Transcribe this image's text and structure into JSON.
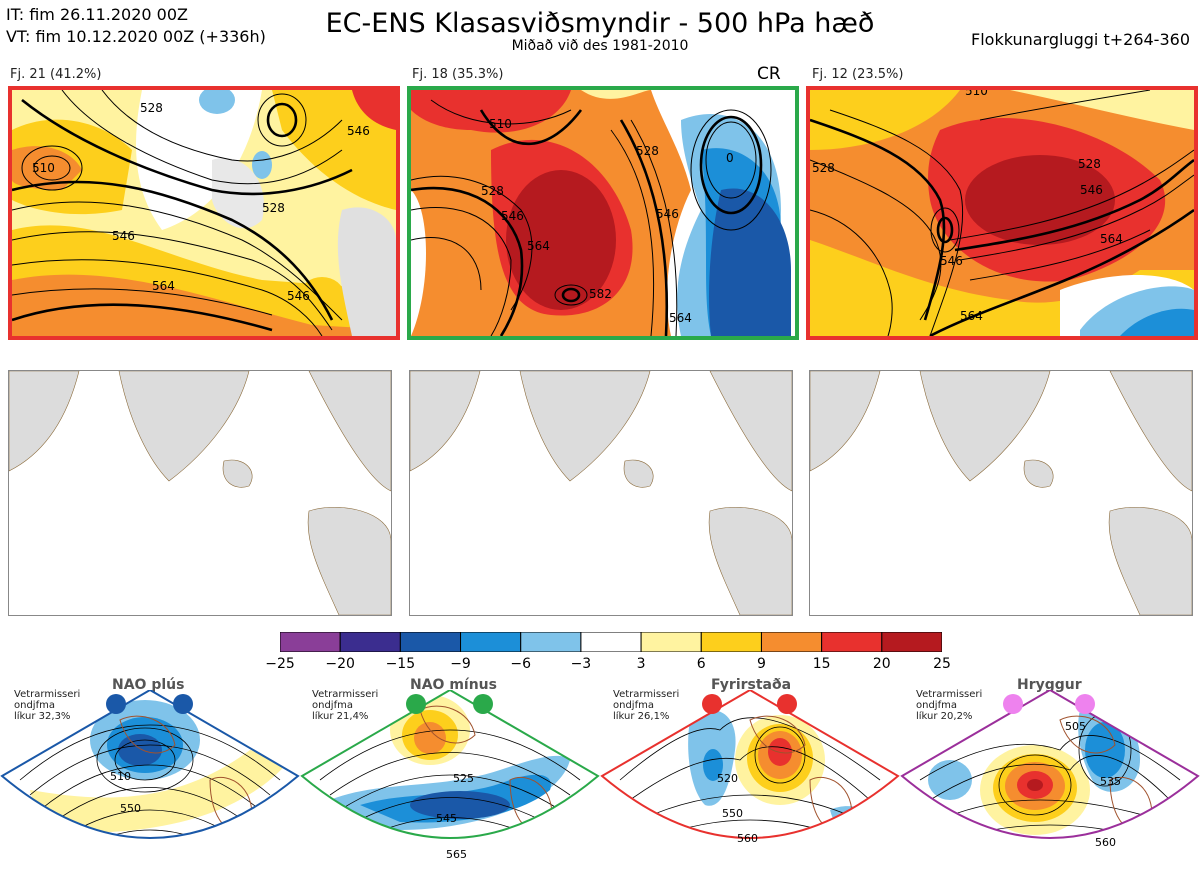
{
  "header": {
    "it_line": "IT: fim 26.11.2020 00Z",
    "vt_line": "VT: fim 10.12.2020 00Z  (+336h)",
    "title": "EC-ENS Klasasviðsmyndir - 500 hPa hæð",
    "subtitle": "Miðað við des 1981-2010",
    "window": "Flokkunargluggi t+264-360"
  },
  "clusters": [
    {
      "label": "Fj. 21 (41.2%)",
      "frame_color": "#e8312e",
      "tag": "",
      "contour_labels": [
        "510",
        "528",
        "546",
        "564",
        "528",
        "546",
        "546"
      ]
    },
    {
      "label": "Fj. 18 (35.3%)",
      "frame_color": "#2aa94a",
      "tag": "CR",
      "contour_labels": [
        "510",
        "528",
        "546",
        "564",
        "582",
        "528",
        "546",
        "564",
        "0"
      ]
    },
    {
      "label": "Fj. 12 (23.5%)",
      "frame_color": "#e8312e",
      "tag": "",
      "contour_labels": [
        "510",
        "528",
        "546",
        "564",
        "528",
        "546",
        "564"
      ]
    }
  ],
  "colorbar": {
    "ticks": [
      "−25",
      "−20",
      "−15",
      "−9",
      "−6",
      "−3",
      "3",
      "6",
      "9",
      "15",
      "20",
      "25"
    ],
    "colors": [
      "#8a3e98",
      "#3b2d8f",
      "#1a58a8",
      "#1c8fd8",
      "#7fc3ea",
      "#ffffff",
      "#fff3a0",
      "#fdcf1c",
      "#f58d2f",
      "#e8312e",
      "#b51a1f"
    ]
  },
  "regimes": [
    {
      "title": "NAO plús",
      "note_line1": "Vetrarmisseri",
      "note_line2": "ondjfma",
      "note_line3": "líkur 32,3%",
      "color": "#1a58a8",
      "labels": [
        "510",
        "550"
      ]
    },
    {
      "title": "NAO mínus",
      "note_line1": "Vetrarmisseri",
      "note_line2": "ondjfma",
      "note_line3": "líkur 21,4%",
      "color": "#2aa94a",
      "labels": [
        "525",
        "545",
        "565"
      ]
    },
    {
      "title": "Fyrirstaða",
      "note_line1": "Vetrarmisseri",
      "note_line2": "ondjfma",
      "note_line3": "líkur 26,1%",
      "color": "#e8312e",
      "labels": [
        "520",
        "550",
        "560"
      ]
    },
    {
      "title": "Hryggur",
      "note_line1": "Vetrarmisseri",
      "note_line2": "ondjfma",
      "note_line3": "líkur 20,2%",
      "color": "#9b2f9b",
      "labels": [
        "505",
        "535",
        "560"
      ]
    }
  ]
}
